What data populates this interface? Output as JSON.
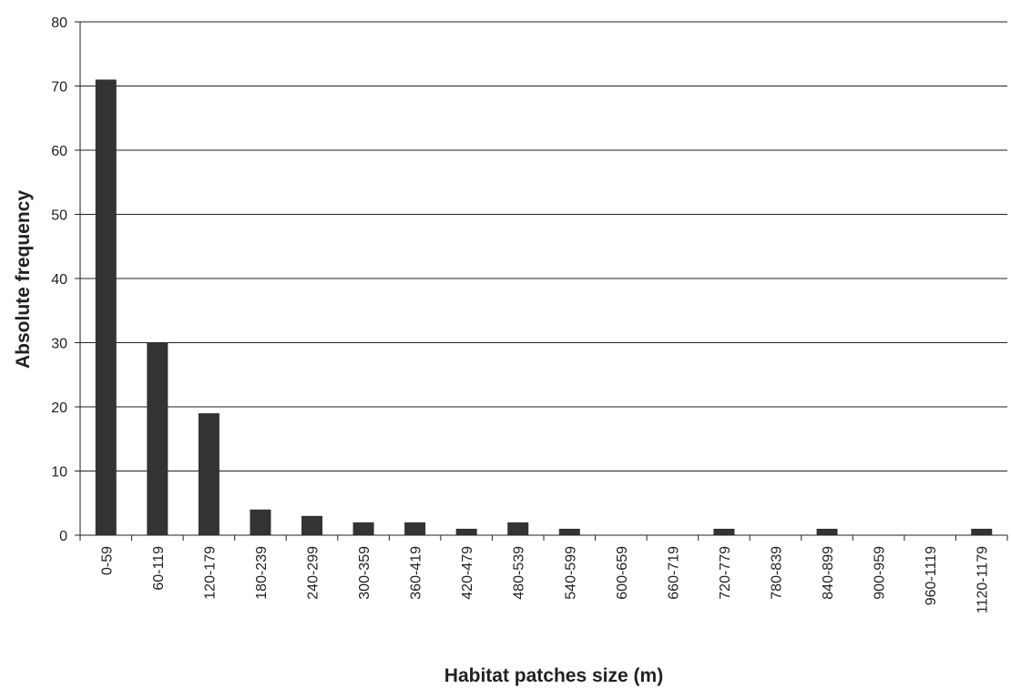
{
  "chart_data": {
    "type": "bar",
    "xlabel": "Habitat patches size (m)",
    "ylabel": "Absolute frequency",
    "ylim": [
      0,
      80
    ],
    "yticks": [
      0,
      10,
      20,
      30,
      40,
      50,
      60,
      70,
      80
    ],
    "grid": true,
    "categories": [
      "0-59",
      "60-119",
      "120-179",
      "180-239",
      "240-299",
      "300-359",
      "360-419",
      "420-479",
      "480-539",
      "540-599",
      "600-659",
      "660-719",
      "720-779",
      "780-839",
      "840-899",
      "900-959",
      "960-1119",
      "1120-1179"
    ],
    "values": [
      71,
      30,
      19,
      4,
      3,
      2,
      2,
      1,
      2,
      1,
      0,
      0,
      1,
      0,
      1,
      0,
      0,
      1
    ],
    "colors": {
      "bar": "#333333",
      "grid": "#222222",
      "axis": "#222222"
    }
  }
}
